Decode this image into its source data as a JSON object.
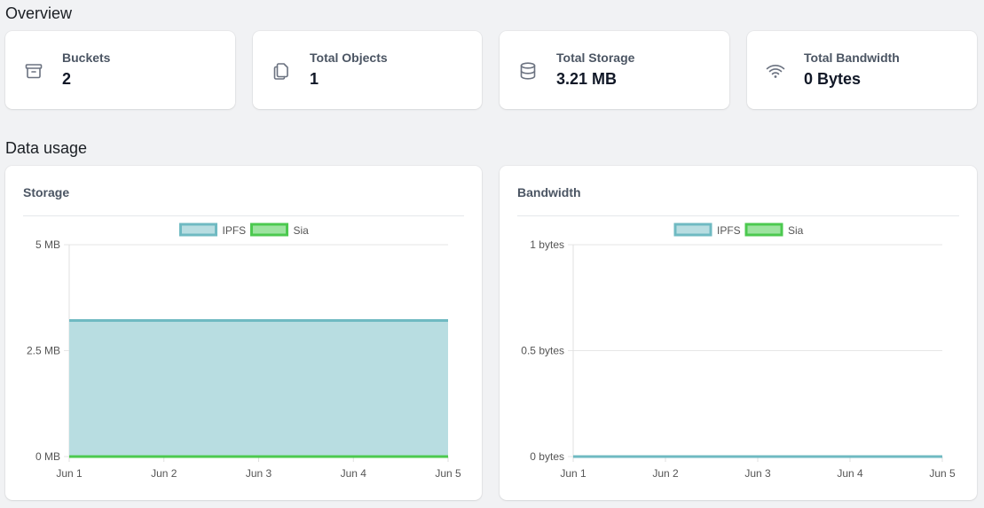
{
  "overview": {
    "title": "Overview",
    "stats": [
      {
        "label": "Buckets",
        "value": "2",
        "icon": "archive-box-icon"
      },
      {
        "label": "Total Objects",
        "value": "1",
        "icon": "documents-icon"
      },
      {
        "label": "Total Storage",
        "value": "3.21 MB",
        "icon": "database-icon"
      },
      {
        "label": "Total Bandwidth",
        "value": "0 Bytes",
        "icon": "wifi-icon"
      }
    ]
  },
  "data_usage": {
    "title": "Data usage",
    "storage_title": "Storage",
    "bandwidth_title": "Bandwidth"
  },
  "colors": {
    "ipfs_fill": "#b8dde1",
    "ipfs_line": "#6fbac2",
    "sia_fill": "#9de3a0",
    "sia_line": "#4cc94f"
  },
  "chart_data": [
    {
      "type": "area",
      "title": "Storage",
      "categories": [
        "Jun 1",
        "Jun 2",
        "Jun 3",
        "Jun 4",
        "Jun 5"
      ],
      "series": [
        {
          "name": "IPFS",
          "values": [
            3.21,
            3.21,
            3.21,
            3.21,
            3.21
          ]
        },
        {
          "name": "Sia",
          "values": [
            0,
            0,
            0,
            0,
            0
          ]
        }
      ],
      "ylim": [
        0,
        5
      ],
      "yticks": [
        "0 MB",
        "2.5 MB",
        "5 MB"
      ],
      "legend": "top-center"
    },
    {
      "type": "area",
      "title": "Bandwidth",
      "categories": [
        "Jun 1",
        "Jun 2",
        "Jun 3",
        "Jun 4",
        "Jun 5"
      ],
      "series": [
        {
          "name": "IPFS",
          "values": [
            0,
            0,
            0,
            0,
            0
          ]
        },
        {
          "name": "Sia",
          "values": [
            0,
            0,
            0,
            0,
            0
          ]
        }
      ],
      "ylim": [
        0,
        1
      ],
      "yticks": [
        "0 bytes",
        "0.5 bytes",
        "1 bytes"
      ],
      "legend": "top-center"
    }
  ]
}
